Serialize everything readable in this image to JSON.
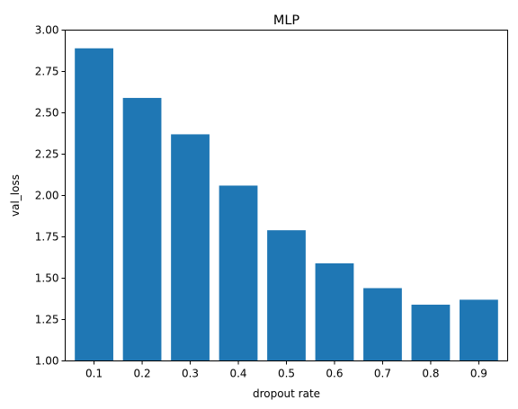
{
  "chart_data": {
    "type": "bar",
    "title": "MLP",
    "xlabel": "dropout rate",
    "ylabel": "val_loss",
    "categories": [
      "0.1",
      "0.2",
      "0.3",
      "0.4",
      "0.5",
      "0.6",
      "0.7",
      "0.8",
      "0.9"
    ],
    "values": [
      2.89,
      2.59,
      2.37,
      2.06,
      1.79,
      1.59,
      1.44,
      1.34,
      1.37
    ],
    "ylim": [
      1.0,
      3.0
    ],
    "yticks": [
      "1.00",
      "1.25",
      "1.50",
      "1.75",
      "2.00",
      "2.25",
      "2.50",
      "2.75",
      "3.00"
    ],
    "grid": false,
    "legend": "none",
    "bar_color": "#1f77b4"
  }
}
